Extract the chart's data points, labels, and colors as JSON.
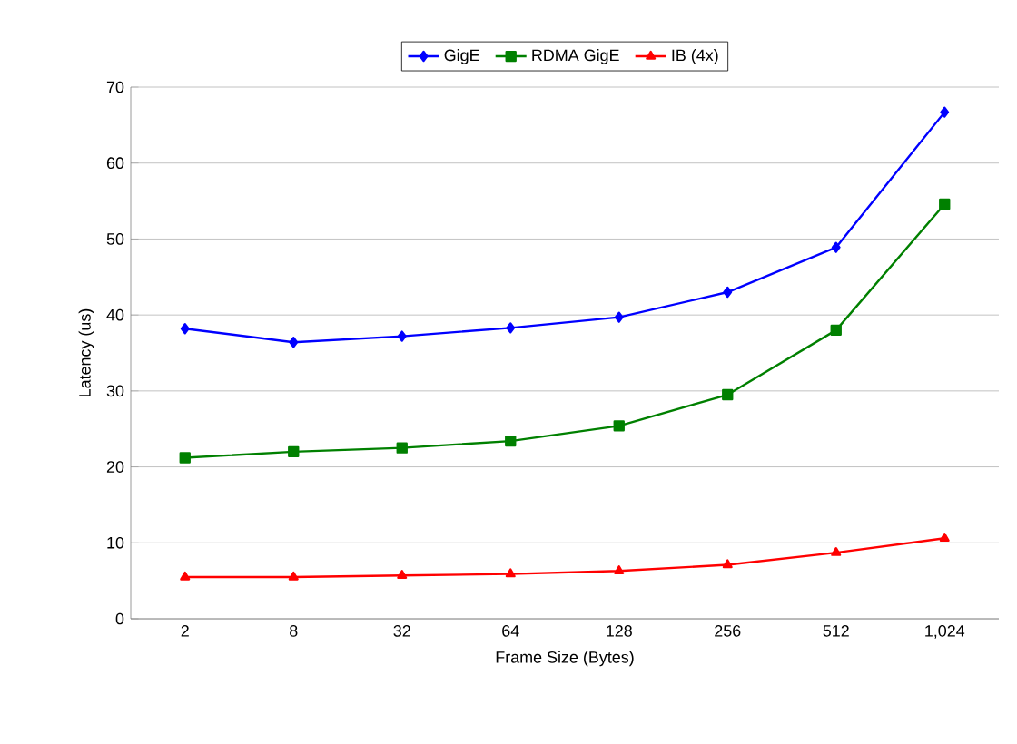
{
  "chart_data": {
    "type": "line",
    "xlabel": "Frame Size (Bytes)",
    "ylabel": "Latency (us)",
    "categories": [
      "2",
      "8",
      "32",
      "64",
      "128",
      "256",
      "512",
      "1,024"
    ],
    "series": [
      {
        "name": "GigE",
        "color": "#0000ff",
        "marker": "diamond",
        "values": [
          38.2,
          36.4,
          37.2,
          38.3,
          39.7,
          43.0,
          48.9,
          66.7
        ]
      },
      {
        "name": "RDMA GigE",
        "color": "#008000",
        "marker": "square",
        "values": [
          21.2,
          22.0,
          22.5,
          23.4,
          25.4,
          29.5,
          38.0,
          54.6
        ]
      },
      {
        "name": "IB (4x)",
        "color": "#ff0000",
        "marker": "triangle",
        "values": [
          5.5,
          5.5,
          5.7,
          5.9,
          6.3,
          7.1,
          8.7,
          10.6
        ]
      }
    ],
    "ylim": [
      0,
      70
    ],
    "yticks": [
      0,
      10,
      20,
      30,
      40,
      50,
      60,
      70
    ],
    "grid": "y",
    "legend": "top"
  }
}
